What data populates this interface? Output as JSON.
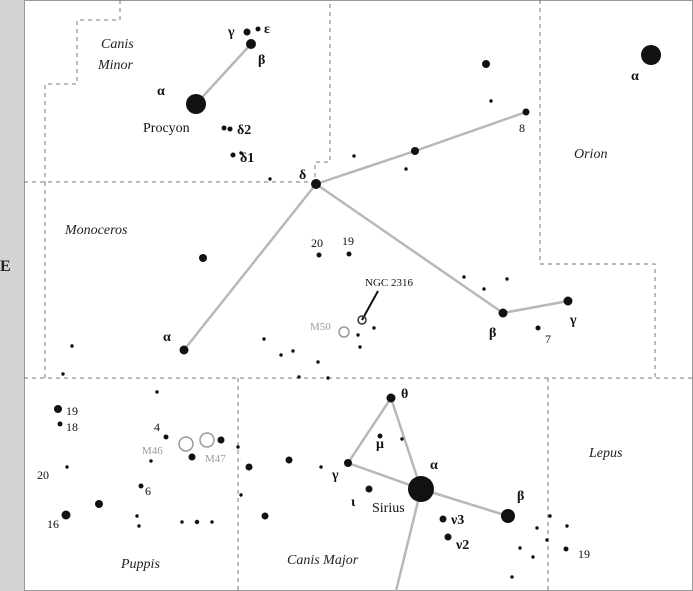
{
  "colors": {
    "background": "#ffffff",
    "margin": "#d3d3d3",
    "boundary": "#777777",
    "line": "#b8b8b8",
    "star": "#111111",
    "cluster": "#9a9a9a"
  },
  "edge_marker": "E",
  "constellations": {
    "canis_minor_1": "Canis",
    "canis_minor_2": "Minor",
    "orion": "Orion",
    "monoceros": "Monoceros",
    "lepus": "Lepus",
    "puppis": "Puppis",
    "canis_major": "Canis Major"
  },
  "star_names": {
    "procyon": "Procyon",
    "sirius": "Sirius"
  },
  "greek": {
    "cmi_alpha": "α",
    "cmi_beta": "β",
    "cmi_gamma": "γ",
    "cmi_epsilon": "ε",
    "delta2": "δ2",
    "delta1": "δ1",
    "mon_delta": "δ",
    "mon_alpha": "α",
    "mon_beta": "β",
    "mon_gamma": "γ",
    "ori_alpha": "α",
    "cma_alpha": "α",
    "cma_beta": "β",
    "cma_gamma": "γ",
    "cma_theta": "θ",
    "cma_mu": "μ",
    "cma_iota": "ι",
    "nu3": "ν3",
    "nu2": "ν2"
  },
  "numbers": {
    "n8": "8",
    "n20": "20",
    "n19": "19",
    "n7": "7",
    "n19_puppis": "19",
    "n18": "18",
    "n20_puppis": "20",
    "n16": "16",
    "n4": "4",
    "n6": "6",
    "n19_lepus": "19"
  },
  "deep_sky": {
    "ngc2316": "NGC 2316",
    "m50": "M50",
    "m46": "M46",
    "m47": "M47"
  }
}
